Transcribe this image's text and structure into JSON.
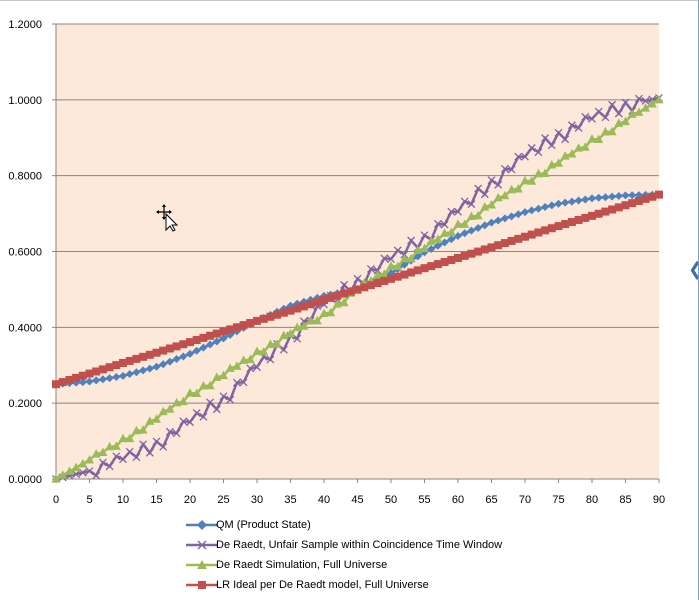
{
  "chart_data": {
    "type": "line",
    "title": "",
    "xlabel": "",
    "ylabel": "",
    "xlim": [
      0,
      90
    ],
    "ylim": [
      0,
      1.2
    ],
    "x_ticks": [
      "0",
      "5",
      "10",
      "15",
      "20",
      "25",
      "30",
      "35",
      "40",
      "45",
      "50",
      "55",
      "60",
      "65",
      "70",
      "75",
      "80",
      "85",
      "90"
    ],
    "y_ticks": [
      "0.0000",
      "0.2000",
      "0.4000",
      "0.6000",
      "0.8000",
      "1.0000",
      "1.2000"
    ],
    "grid": "horizontal",
    "plot_background": "#fde9d9",
    "legend_position": "bottom",
    "series": [
      {
        "name": "QM (Product State)",
        "color": "#4f81bd",
        "marker": "diamond",
        "x": [
          0,
          5,
          10,
          15,
          20,
          25,
          30,
          35,
          40,
          45,
          50,
          55,
          60,
          65,
          70,
          75,
          80,
          85,
          90
        ],
        "values": [
          0.25,
          0.257,
          0.272,
          0.296,
          0.33,
          0.371,
          0.417,
          0.457,
          0.483,
          0.5,
          0.543,
          0.598,
          0.641,
          0.676,
          0.704,
          0.726,
          0.74,
          0.748,
          0.75
        ]
      },
      {
        "name": "De Raedt, Unfair Sample within Coincidence Time Window",
        "color": "#8064a2",
        "marker": "x",
        "x": [
          0,
          5,
          10,
          15,
          20,
          25,
          30,
          35,
          40,
          45,
          50,
          55,
          60,
          65,
          70,
          75,
          80,
          85,
          90
        ],
        "values": [
          0.0,
          0.021,
          0.052,
          0.091,
          0.15,
          0.21,
          0.295,
          0.37,
          0.46,
          0.52,
          0.58,
          0.635,
          0.705,
          0.78,
          0.85,
          0.905,
          0.95,
          0.985,
          1.005
        ]
      },
      {
        "name": "De Raedt Simulation, Full Universe",
        "color": "#9bbb59",
        "marker": "triangle",
        "x": [
          0,
          5,
          10,
          15,
          20,
          25,
          30,
          35,
          40,
          45,
          50,
          55,
          60,
          65,
          70,
          75,
          80,
          85,
          90
        ],
        "values": [
          0.0,
          0.05,
          0.1,
          0.16,
          0.22,
          0.275,
          0.33,
          0.385,
          0.43,
          0.5,
          0.555,
          0.61,
          0.665,
          0.725,
          0.78,
          0.835,
          0.89,
          0.945,
          1.0
        ]
      },
      {
        "name": "LR Ideal per De Raedt model, Full Universe",
        "color": "#c0504d",
        "marker": "square",
        "x": [
          0,
          5,
          10,
          15,
          20,
          25,
          30,
          35,
          40,
          45,
          50,
          55,
          60,
          65,
          70,
          75,
          80,
          85,
          90
        ],
        "values": [
          0.25,
          0.278,
          0.306,
          0.333,
          0.361,
          0.389,
          0.417,
          0.444,
          0.472,
          0.5,
          0.528,
          0.556,
          0.583,
          0.611,
          0.639,
          0.667,
          0.694,
          0.722,
          0.75
        ]
      }
    ]
  }
}
